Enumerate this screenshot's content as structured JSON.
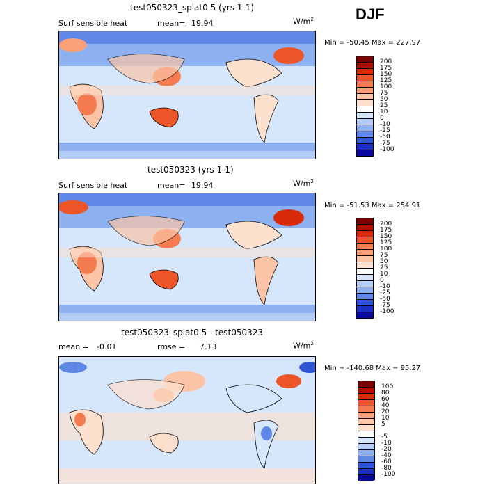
{
  "season": "DJF",
  "panels": [
    {
      "title": "test050323_splat0.5 (yrs 1-1)",
      "variable": "Surf sensible heat",
      "mean_label": "mean=",
      "mean_value": "19.94",
      "units": "W/m",
      "units_sup": "2",
      "minmax": "Min = -50.45 Max = 227.97",
      "legend_labels": [
        "200",
        "175",
        "150",
        "125",
        "100",
        "75",
        "50",
        "25",
        "10",
        "0",
        "-10",
        "-25",
        "-50",
        "-75",
        "-100"
      ]
    },
    {
      "title": "test050323 (yrs 1-1)",
      "variable": "Surf sensible heat",
      "mean_label": "mean=",
      "mean_value": "19.94",
      "units": "W/m",
      "units_sup": "2",
      "minmax": "Min = -51.53 Max = 254.91",
      "legend_labels": [
        "200",
        "175",
        "150",
        "125",
        "100",
        "75",
        "50",
        "25",
        "10",
        "0",
        "-10",
        "-25",
        "-50",
        "-75",
        "-100"
      ]
    },
    {
      "title": "test050323_splat0.5 - test050323",
      "mean_label": "mean =",
      "mean_value": "-0.01",
      "rmse_label": "rmse =",
      "rmse_value": "7.13",
      "units": "W/m",
      "units_sup": "2",
      "minmax": "Min = -140.68 Max = 95.27",
      "legend_labels": [
        "100",
        "80",
        "60",
        "40",
        "20",
        "10",
        "5",
        "-5",
        "-10",
        "-20",
        "-40",
        "-60",
        "-80",
        "-100"
      ]
    }
  ],
  "colors": {
    "abs_scale": [
      "#7a0000",
      "#b00e00",
      "#d92a0a",
      "#ec5528",
      "#f57b50",
      "#f9a07a",
      "#fbc4a6",
      "#fde0cd",
      "#ffffff",
      "#d6e6fb",
      "#b3cdf6",
      "#8db1f0",
      "#5f87e6",
      "#2f54d6",
      "#1b2fc4",
      "#0a0a9e"
    ],
    "diff_scale": [
      "#7a0000",
      "#b00e00",
      "#d92a0a",
      "#ec5528",
      "#f57b50",
      "#f9a07a",
      "#fbc4a6",
      "#fde0cd",
      "#ffffff",
      "#d6e6fb",
      "#b3cdf6",
      "#8db1f0",
      "#5f87e6",
      "#2f54d6",
      "#1b2fc4",
      "#0a0a9e"
    ]
  }
}
